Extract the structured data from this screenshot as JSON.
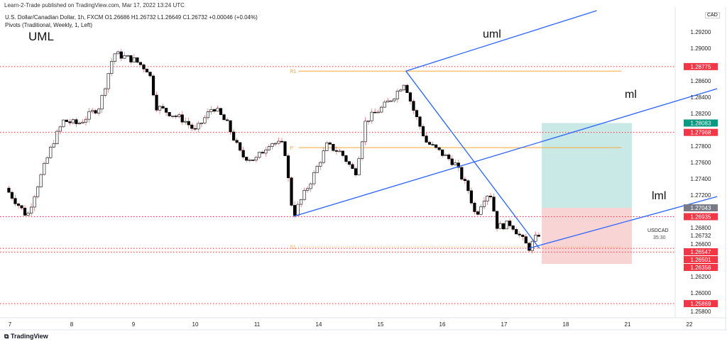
{
  "header": {
    "publisher": "Learn-2-Trade published on TradingView.com, Mar 17, 2022 13:24 UTC",
    "symbol_line": "U.S. Dollar/Canadian Dollar, 1h, FXCM  O1.26686  H1.26732  L1.26649  C1.26732  +0.00046 (+0.04%)",
    "indicator_line": "Pivots (Traditional, Weekly, 1, Left)"
  },
  "annotations": {
    "uml_big": "UML",
    "uml": "uml",
    "ml": "ml",
    "lml": "lml"
  },
  "currency_badge": "CAD",
  "symbol_label": "USDCAD",
  "countdown": "35:30",
  "footer": {
    "logo": "TradingView"
  },
  "colors": {
    "up": "#ffffff",
    "down": "#000000",
    "drawing": "#2962ff",
    "pivot": "#f7a839",
    "level": "#f23645",
    "profit": "#b2dfdb",
    "loss": "#f8c9c9",
    "last_price": "#089981"
  },
  "chart_data": {
    "type": "candlestick",
    "price_axis": {
      "ticks": [
        "1.29200",
        "1.29000",
        "1.28600",
        "1.28400",
        "1.28200",
        "1.27800",
        "1.27600",
        "1.27400",
        "1.27200",
        "1.26800",
        "1.26600",
        "1.26200",
        "1.26000",
        "1.25800"
      ],
      "range": [
        1.2575,
        1.2935
      ]
    },
    "time_axis": {
      "ticks": [
        "7",
        "8",
        "9",
        "10",
        "11",
        "14",
        "15",
        "16",
        "17",
        "18",
        "21",
        "22"
      ]
    },
    "price_path": [
      [
        -0.07,
        1.27286
      ],
      [
        0.28,
        1.26938
      ],
      [
        0.41,
        1.27243
      ],
      [
        0.7,
        1.27852
      ],
      [
        0.87,
        1.28113
      ],
      [
        1.1,
        1.28069
      ],
      [
        1.45,
        1.28287
      ],
      [
        1.68,
        1.28939
      ],
      [
        2.02,
        1.28852
      ],
      [
        2.25,
        1.28722
      ],
      [
        2.37,
        1.28287
      ],
      [
        2.83,
        1.28113
      ],
      [
        3.0,
        1.27982
      ],
      [
        3.29,
        1.28287
      ],
      [
        3.52,
        1.28069
      ],
      [
        3.75,
        1.27678
      ],
      [
        3.98,
        1.27634
      ],
      [
        4.21,
        1.27852
      ],
      [
        4.44,
        1.27808
      ],
      [
        4.55,
        1.27112
      ],
      [
        4.61,
        1.26982
      ],
      [
        4.9,
        1.27417
      ],
      [
        5.13,
        1.27808
      ],
      [
        5.36,
        1.27721
      ],
      [
        5.59,
        1.2746
      ],
      [
        5.76,
        1.28113
      ],
      [
        6.05,
        1.28287
      ],
      [
        6.22,
        1.28417
      ],
      [
        6.39,
        1.28591
      ],
      [
        6.51,
        1.28287
      ],
      [
        6.74,
        1.27852
      ],
      [
        6.97,
        1.27721
      ],
      [
        7.2,
        1.27591
      ],
      [
        7.43,
        1.27243
      ],
      [
        7.54,
        1.26938
      ],
      [
        7.66,
        1.27156
      ],
      [
        7.77,
        1.27243
      ],
      [
        7.89,
        1.26808
      ],
      [
        8.11,
        1.26851
      ],
      [
        8.4,
        1.26547
      ],
      [
        8.57,
        1.26732
      ]
    ],
    "price_tags": [
      {
        "value": "1.28775",
        "color": "#f23645"
      },
      {
        "value": "1.28083",
        "color": "#089981"
      },
      {
        "value": "1.27968",
        "color": "#f23645"
      },
      {
        "value": "1.27043",
        "color": "#787b86"
      },
      {
        "value": "1.26935",
        "color": "#f23645"
      },
      {
        "value": "1.26732",
        "color": "none"
      },
      {
        "value": "1.26547",
        "color": "#f23645"
      },
      {
        "value": "1.26501",
        "color": "#f23645"
      },
      {
        "value": "1.26356",
        "color": "#f23645"
      },
      {
        "value": "1.25869",
        "color": "#f23645"
      }
    ],
    "horizontal_levels": [
      1.28775,
      1.27968,
      1.26935,
      1.26547,
      1.26501,
      1.25869
    ],
    "pivots": [
      {
        "label": "R1",
        "value": 1.2872
      },
      {
        "label": "P",
        "value": 1.27782
      },
      {
        "label": "S1",
        "value": 1.26564
      }
    ],
    "trendlines": [
      {
        "name": "uml",
        "from": [
          6.41,
          1.2872
        ],
        "to": [
          9.5,
          1.29461
        ]
      },
      {
        "name": "ml",
        "from": [
          4.59,
          1.26938
        ],
        "to": [
          11.45,
          1.28504
        ]
      },
      {
        "name": "lml",
        "from": [
          8.4,
          1.26547
        ],
        "to": [
          11.45,
          1.27182
        ]
      },
      {
        "name": "median-line",
        "from": [
          6.41,
          1.2872
        ],
        "to": [
          8.57,
          1.26547
        ]
      }
    ],
    "long_position": {
      "target": 1.28083,
      "entry": 1.27043,
      "stop": 1.26356
    }
  }
}
